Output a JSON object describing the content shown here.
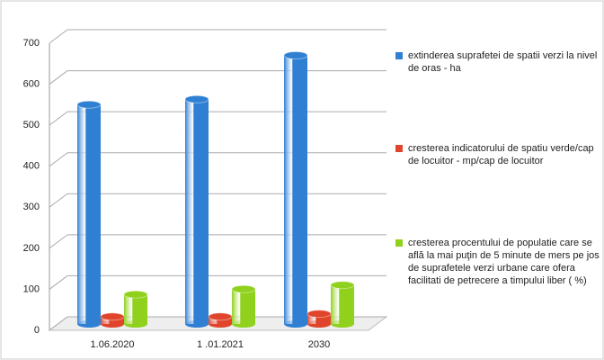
{
  "chart_data": {
    "type": "bar",
    "categories": [
      "1.06.2020",
      "1 .01.2021",
      "2030"
    ],
    "series": [
      {
        "name": "extinderea suprafetei de spatii verzi la nivel de oras - ha",
        "color": "#2f7fd3",
        "values": [
          535,
          548,
          655
        ]
      },
      {
        "name": "cresterea indicatorului de  spatiu verde/cap de locuitor  - mp/cap de locuitor",
        "color": "#e0452c",
        "values": [
          18,
          18,
          25
        ]
      },
      {
        "name": "cresterea procentului de populatie care se află la mai puţin de 5 minute de mers pe jos de suprafetele verzi urbane care ofera facilitati de petrecere a timpului liber ( %)",
        "color": "#8fd11c",
        "values": [
          72,
          85,
          95
        ]
      }
    ],
    "ylim": [
      0,
      700
    ],
    "yticks": [
      0,
      100,
      200,
      300,
      400,
      500,
      600,
      700
    ],
    "grid": true
  }
}
